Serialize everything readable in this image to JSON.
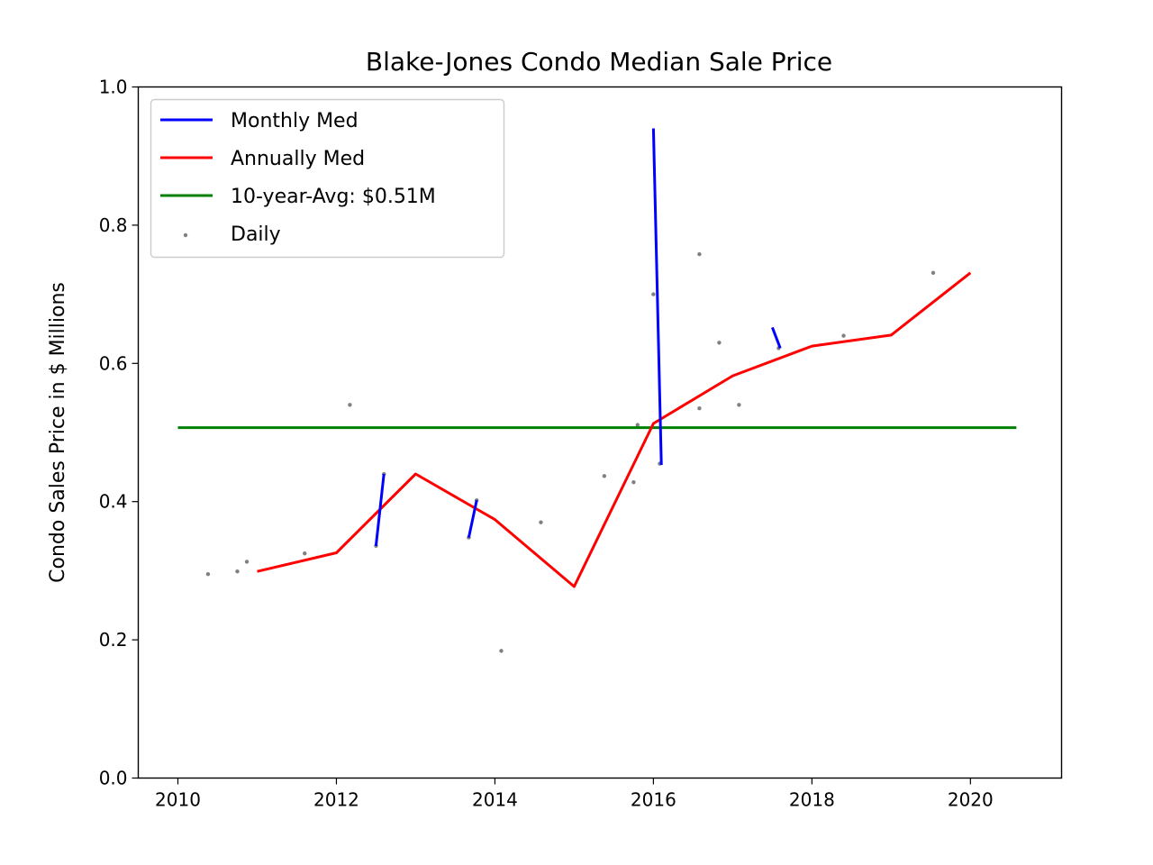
{
  "chart_data": {
    "type": "line",
    "title": "Blake-Jones Condo Median Sale Price",
    "xlabel": "",
    "ylabel": "Condo Sales Price in $ Millions",
    "xlim": [
      2009.5,
      2021.15
    ],
    "ylim": [
      0.0,
      1.0
    ],
    "xticks": [
      2010,
      2012,
      2014,
      2016,
      2018,
      2020
    ],
    "xtick_labels": [
      "2010",
      "2012",
      "2014",
      "2016",
      "2018",
      "2020"
    ],
    "yticks": [
      0.0,
      0.2,
      0.4,
      0.6,
      0.8,
      1.0
    ],
    "ytick_labels": [
      "0.0",
      "0.2",
      "0.4",
      "0.6",
      "0.8",
      "1.0"
    ],
    "grid": false,
    "legend_position": "top-left",
    "series": [
      {
        "name": "Monthly Med",
        "kind": "line",
        "color": "#0000ff",
        "segments": [
          [
            [
              2012.5,
              0.336
            ],
            [
              2012.6,
              0.44
            ]
          ],
          [
            [
              2013.67,
              0.348
            ],
            [
              2013.77,
              0.402
            ]
          ],
          [
            [
              2016.0,
              0.94
            ],
            [
              2016.1,
              0.453
            ]
          ],
          [
            [
              2017.5,
              0.652
            ],
            [
              2017.6,
              0.622
            ]
          ]
        ]
      },
      {
        "name": "Annually Med",
        "kind": "line",
        "color": "#ff0000",
        "points": [
          [
            2011,
            0.299
          ],
          [
            2012,
            0.326
          ],
          [
            2013,
            0.44
          ],
          [
            2014,
            0.374
          ],
          [
            2015,
            0.277
          ],
          [
            2016,
            0.513
          ],
          [
            2017,
            0.582
          ],
          [
            2018,
            0.625
          ],
          [
            2019,
            0.641
          ],
          [
            2020,
            0.731
          ]
        ]
      },
      {
        "name": "10-year-Avg: $0.51M",
        "kind": "hline",
        "color": "#008000",
        "x": [
          2010,
          2020.58
        ],
        "y": 0.507
      },
      {
        "name": "Daily",
        "kind": "scatter",
        "color": "#808080",
        "points": [
          [
            2010.38,
            0.295
          ],
          [
            2010.75,
            0.299
          ],
          [
            2010.87,
            0.313
          ],
          [
            2011.6,
            0.325
          ],
          [
            2012.17,
            0.54
          ],
          [
            2012.5,
            0.336
          ],
          [
            2012.6,
            0.44
          ],
          [
            2013.67,
            0.348
          ],
          [
            2013.77,
            0.402
          ],
          [
            2014.08,
            0.184
          ],
          [
            2014.58,
            0.37
          ],
          [
            2015.38,
            0.437
          ],
          [
            2015.75,
            0.428
          ],
          [
            2015.8,
            0.511
          ],
          [
            2016.0,
            0.7
          ],
          [
            2016.08,
            0.455
          ],
          [
            2016.58,
            0.758
          ],
          [
            2016.58,
            0.535
          ],
          [
            2016.83,
            0.63
          ],
          [
            2017.08,
            0.54
          ],
          [
            2017.58,
            0.622
          ],
          [
            2018.4,
            0.64
          ],
          [
            2019.53,
            0.731
          ]
        ]
      }
    ]
  }
}
